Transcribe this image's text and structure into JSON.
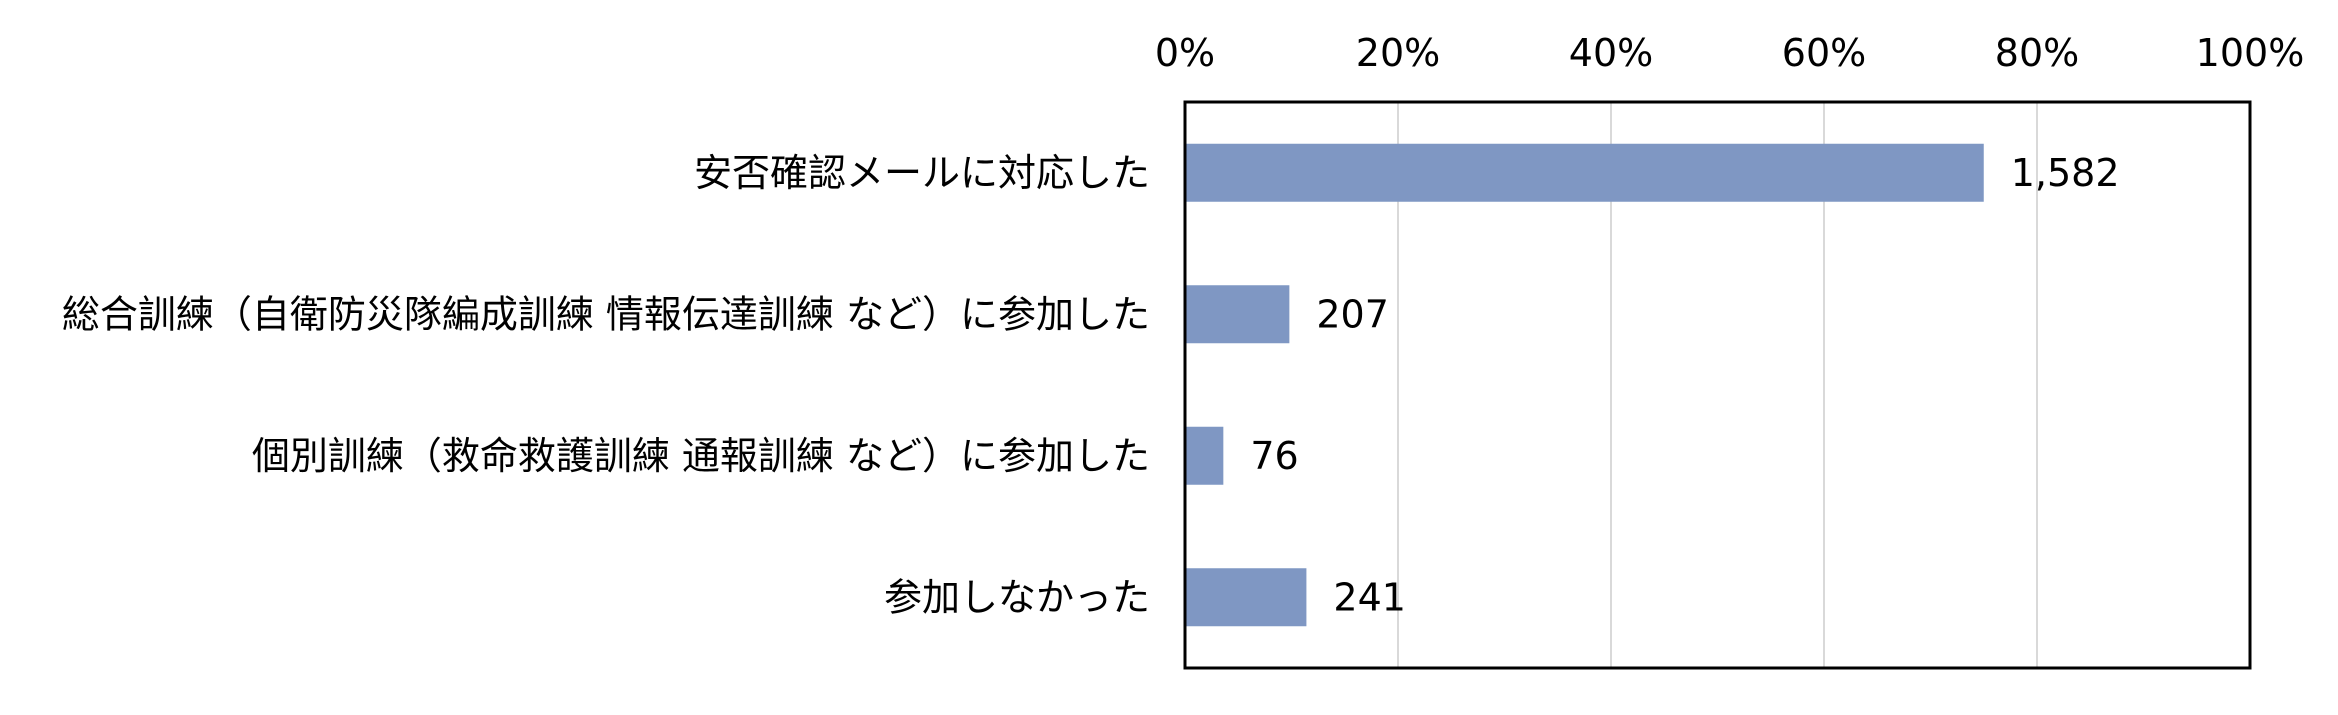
{
  "chart_data": {
    "type": "bar",
    "orientation": "horizontal",
    "title": "",
    "xlabel": "",
    "ylabel": "",
    "x_axis_position": "top",
    "xlim": [
      0,
      100
    ],
    "x_ticks": [
      0,
      20,
      40,
      60,
      80,
      100
    ],
    "x_tick_labels": [
      "0%",
      "20%",
      "40%",
      "60%",
      "80%",
      "100%"
    ],
    "grid": true,
    "legend": "none",
    "bar_color": "#7f97c3",
    "grid_color": "#d9d9d9",
    "categories": [
      "安否確認メールに対応した",
      "総合訓練（自衛防災隊編成訓練 情報伝達訓練 など）に参加した",
      "個別訓練（救命救護訓練 通報訓練 など）に参加した",
      "参加しなかった"
    ],
    "values": [
      75,
      9.8,
      3.6,
      11.4
    ],
    "data_labels": [
      "1,582",
      "207",
      "76",
      "241"
    ]
  }
}
